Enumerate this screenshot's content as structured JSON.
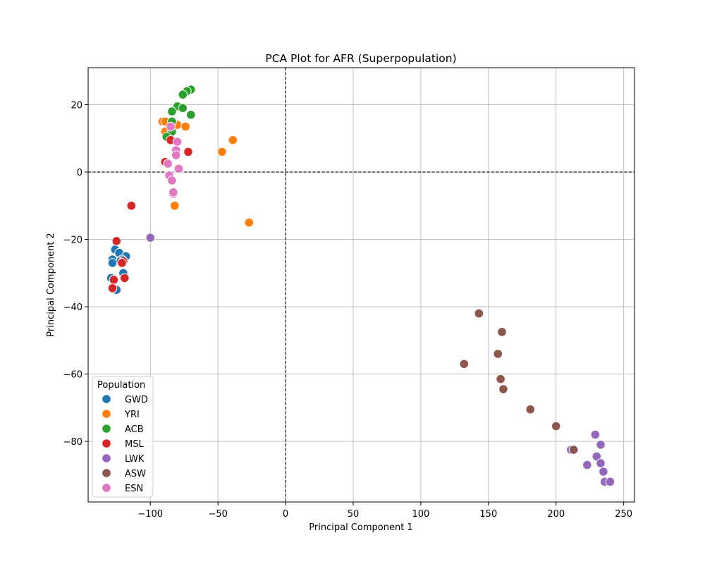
{
  "chart_data": {
    "type": "scatter",
    "title": "PCA Plot for AFR (Superpopulation)",
    "xlabel": "Principal Component 1",
    "ylabel": "Principal Component 2",
    "xlim": [
      -146,
      258
    ],
    "ylim": [
      -98,
      31
    ],
    "xticks": [
      -100,
      -50,
      0,
      50,
      100,
      150,
      200,
      250
    ],
    "yticks": [
      20,
      0,
      -20,
      -40,
      -60,
      -80
    ],
    "grid": true,
    "reference_lines": {
      "x": 0,
      "y": 0,
      "style": "dashed"
    },
    "legend": {
      "title": "Population",
      "placement": "lower-left"
    },
    "series": [
      {
        "name": "GWD",
        "color": "#1f77b4",
        "points": [
          [
            -128,
            -26
          ],
          [
            -128,
            -27
          ],
          [
            -126,
            -23
          ],
          [
            -123,
            -24
          ],
          [
            -118,
            -25
          ],
          [
            -121,
            -26
          ],
          [
            -129,
            -31.5
          ],
          [
            -125,
            -35
          ],
          [
            -120,
            -30
          ],
          [
            -122,
            -26.5
          ]
        ]
      },
      {
        "name": "YRI",
        "color": "#ff7f0e",
        "points": [
          [
            -91,
            15
          ],
          [
            -89,
            15
          ],
          [
            -89,
            12
          ],
          [
            -80,
            14
          ],
          [
            -74,
            13.5
          ],
          [
            -47,
            6
          ],
          [
            -39,
            9.5
          ],
          [
            -27,
            -15
          ],
          [
            -82,
            -10
          ]
        ]
      },
      {
        "name": "ACB",
        "color": "#2ca02c",
        "points": [
          [
            -70,
            24.5
          ],
          [
            -73,
            24
          ],
          [
            -76,
            23
          ],
          [
            -80,
            19.5
          ],
          [
            -76,
            19
          ],
          [
            -70,
            17
          ],
          [
            -84,
            18
          ],
          [
            -84,
            15
          ],
          [
            -84,
            12
          ],
          [
            -88,
            10.5
          ]
        ]
      },
      {
        "name": "MSL",
        "color": "#d62728",
        "points": [
          [
            -114,
            -10
          ],
          [
            -125,
            -20.5
          ],
          [
            -120,
            -26.5
          ],
          [
            -121,
            -27
          ],
          [
            -127,
            -32
          ],
          [
            -119,
            -31.5
          ],
          [
            -128,
            -34.5
          ],
          [
            -89,
            3
          ],
          [
            -72,
            6
          ],
          [
            -85,
            9.5
          ]
        ]
      },
      {
        "name": "LWK",
        "color": "#9467bd",
        "points": [
          [
            -100,
            -19.5
          ],
          [
            211,
            -82.5
          ],
          [
            229,
            -78
          ],
          [
            233,
            -81
          ],
          [
            230,
            -84.5
          ],
          [
            223,
            -87
          ],
          [
            233,
            -86.5
          ],
          [
            235,
            -89
          ],
          [
            236,
            -92
          ],
          [
            240,
            -92
          ]
        ]
      },
      {
        "name": "ASW",
        "color": "#8c564b",
        "points": [
          [
            143,
            -42
          ],
          [
            160,
            -47.5
          ],
          [
            157,
            -54
          ],
          [
            132,
            -57
          ],
          [
            159,
            -61.5
          ],
          [
            161,
            -64.5
          ],
          [
            181,
            -70.5
          ],
          [
            200,
            -75.5
          ],
          [
            213,
            -82.5
          ]
        ]
      },
      {
        "name": "ESN",
        "color": "#e377c2",
        "points": [
          [
            -85,
            13.5
          ],
          [
            -80,
            9
          ],
          [
            -81,
            6.5
          ],
          [
            -81,
            5
          ],
          [
            -87,
            2.5
          ],
          [
            -79,
            1
          ],
          [
            -86,
            -1
          ],
          [
            -84,
            -2.5
          ],
          [
            -83,
            -6.5
          ],
          [
            -83,
            -6
          ]
        ]
      }
    ]
  }
}
